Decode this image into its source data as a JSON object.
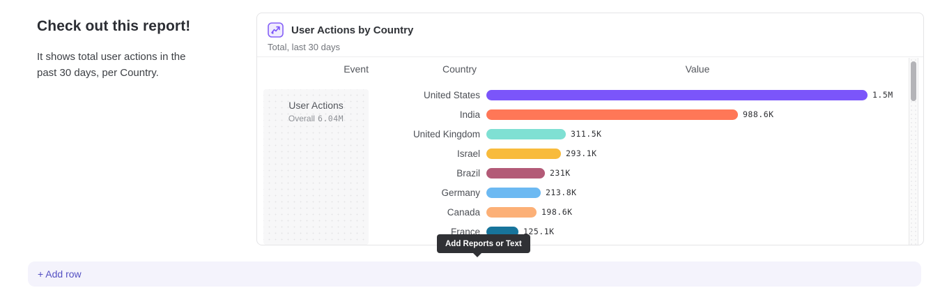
{
  "intro": {
    "title": "Check out this report!",
    "description": "It shows total user actions in the past 30 days, per Country."
  },
  "card": {
    "title": "User Actions by Country",
    "subtitle": "Total, last 30 days",
    "columns": [
      "Event",
      "Country",
      "Value"
    ],
    "event": {
      "name": "User Actions",
      "overall_label": "Overall",
      "overall_value": "6.04M"
    }
  },
  "tooltip": {
    "text": "Add Reports or Text"
  },
  "add_row": {
    "label": "+ Add row"
  },
  "colors": {
    "accent_purple": "#7b55fa",
    "icon_fill": "#f0ebfe",
    "tooltip_bg": "#303135",
    "add_row_bg": "#f4f3fc",
    "add_row_text": "#5450c3"
  },
  "chart_data": {
    "type": "bar",
    "title": "User Actions by Country",
    "subtitle": "Total, last 30 days",
    "orientation": "horizontal",
    "categories": [
      "United States",
      "India",
      "United Kingdom",
      "Israel",
      "Brazil",
      "Germany",
      "Canada",
      "France"
    ],
    "values": [
      1500000,
      988600,
      311500,
      293100,
      231000,
      213800,
      198600,
      125100
    ],
    "value_labels": [
      "1.5M",
      "988.6K",
      "311.5K",
      "293.1K",
      "231K",
      "213.8K",
      "198.6K",
      "125.1K"
    ],
    "bar_colors": [
      "#7b55fa",
      "#ff7757",
      "#7fe0d3",
      "#f8bb3c",
      "#b35a77",
      "#6cb9f2",
      "#fcb077",
      "#17749b"
    ],
    "xlim": [
      0,
      1500000
    ],
    "event_series": "User Actions",
    "overall_total": "6.04M",
    "grid": false,
    "legend": false
  }
}
